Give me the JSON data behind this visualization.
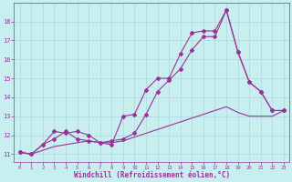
{
  "xlabel": "Windchill (Refroidissement éolien,°C)",
  "background_color": "#c8eef0",
  "line_color": "#993399",
  "xlim": [
    -0.5,
    23.5
  ],
  "ylim": [
    10.6,
    19.0
  ],
  "yticks": [
    11,
    12,
    13,
    14,
    15,
    16,
    17,
    18
  ],
  "xticks": [
    0,
    1,
    2,
    3,
    4,
    5,
    6,
    7,
    8,
    9,
    10,
    11,
    12,
    13,
    14,
    15,
    16,
    17,
    18,
    19,
    20,
    21,
    22,
    23
  ],
  "line1_x": [
    0,
    1,
    2,
    3,
    4,
    5,
    6,
    7,
    8,
    9,
    10,
    11,
    12,
    13,
    14,
    15,
    16,
    17,
    18,
    19,
    20,
    21,
    22,
    23
  ],
  "line1_y": [
    11.1,
    11.0,
    11.5,
    12.2,
    12.1,
    12.2,
    12.0,
    11.6,
    11.5,
    13.0,
    13.1,
    14.4,
    15.0,
    15.0,
    16.3,
    17.4,
    17.5,
    17.5,
    18.6,
    16.4,
    14.8,
    14.3,
    13.3,
    13.3
  ],
  "line2_x": [
    0,
    1,
    2,
    3,
    4,
    5,
    6,
    7,
    8,
    9,
    10,
    11,
    12,
    13,
    14,
    15,
    16,
    17,
    18,
    19,
    20,
    21,
    22,
    23
  ],
  "line2_y": [
    11.1,
    11.0,
    11.5,
    11.8,
    12.2,
    11.8,
    11.7,
    11.6,
    11.7,
    11.8,
    12.1,
    13.1,
    14.3,
    14.9,
    15.5,
    16.5,
    17.2,
    17.2,
    18.6,
    16.4,
    14.8,
    14.3,
    13.3,
    13.3
  ],
  "line3_x": [
    0,
    1,
    2,
    3,
    4,
    5,
    6,
    7,
    8,
    9,
    10,
    11,
    12,
    13,
    14,
    15,
    16,
    17,
    18,
    19,
    20,
    21,
    22,
    23
  ],
  "line3_y": [
    11.1,
    11.0,
    11.2,
    11.4,
    11.5,
    11.6,
    11.7,
    11.6,
    11.6,
    11.7,
    11.9,
    12.1,
    12.3,
    12.5,
    12.7,
    12.9,
    13.1,
    13.3,
    13.5,
    13.2,
    13.0,
    13.0,
    13.0,
    13.3
  ],
  "grid_color": "#aad8dc",
  "marker": "D",
  "markersize": 2.0,
  "linewidth": 0.8,
  "tick_labelsize": 5.0,
  "xlabel_fontsize": 5.5
}
